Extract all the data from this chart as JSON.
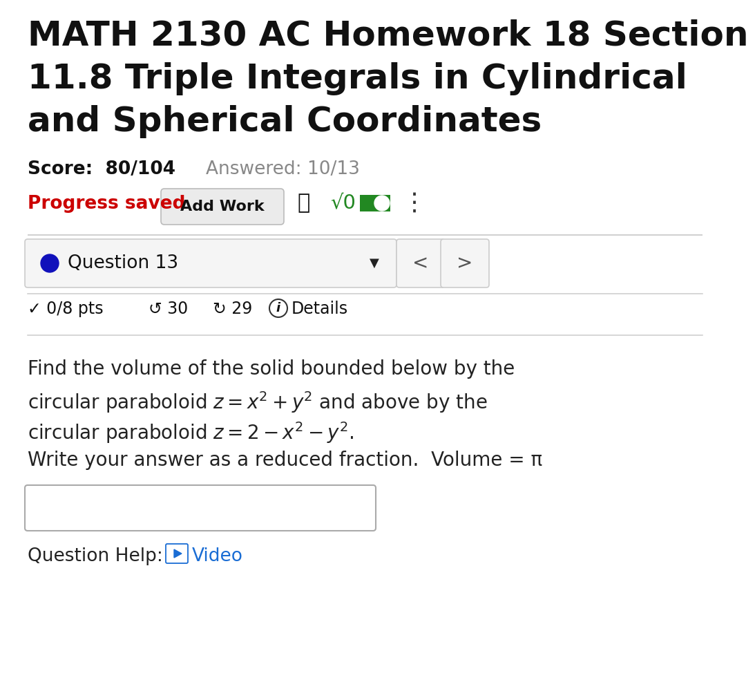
{
  "title_line1": "MATH 2130 AC Homework 18 Section",
  "title_line2": "11.8 Triple Integrals in Cylindrical",
  "title_line3": "and Spherical Coordinates",
  "score_text": "Score:  80/104",
  "answered_text": "Answered: 10/13",
  "progress_text": "Progress saved",
  "add_work_text": "Add Work",
  "sqrt_text": "√0",
  "question_label": "Question 13",
  "pts_text": "✓ 0/8 pts",
  "undo_text": "↺ 30",
  "redo_text": "↻ 29",
  "details_text": "Details",
  "problem_line1": "Find the volume of the solid bounded below by the",
  "problem_line2_pre": "circular paraboloid ",
  "problem_line2_math": "$z = x^2 + y^2$",
  "problem_line2_post": " and above by the",
  "problem_line3_pre": "circular paraboloid ",
  "problem_line3_math": "$z = 2 - x^2 - y^2$",
  "problem_line3_post": ".",
  "problem_line4": "Write your answer as a reduced fraction.  Volume = π",
  "question_help": "Question Help:",
  "video_text": "Video",
  "bg_color": "#ffffff",
  "title_color": "#111111",
  "score_color": "#111111",
  "answered_color": "#888888",
  "progress_color": "#cc0000",
  "body_color": "#222222",
  "video_color": "#1a6dd4",
  "green_color": "#228822",
  "blue_dot_color": "#1111bb",
  "separator_color": "#cccccc",
  "btn_edge_color": "#bbbbbb",
  "btn_face_color": "#ebebeb",
  "nav_edge_color": "#cccccc",
  "nav_face_color": "#f5f5f5"
}
